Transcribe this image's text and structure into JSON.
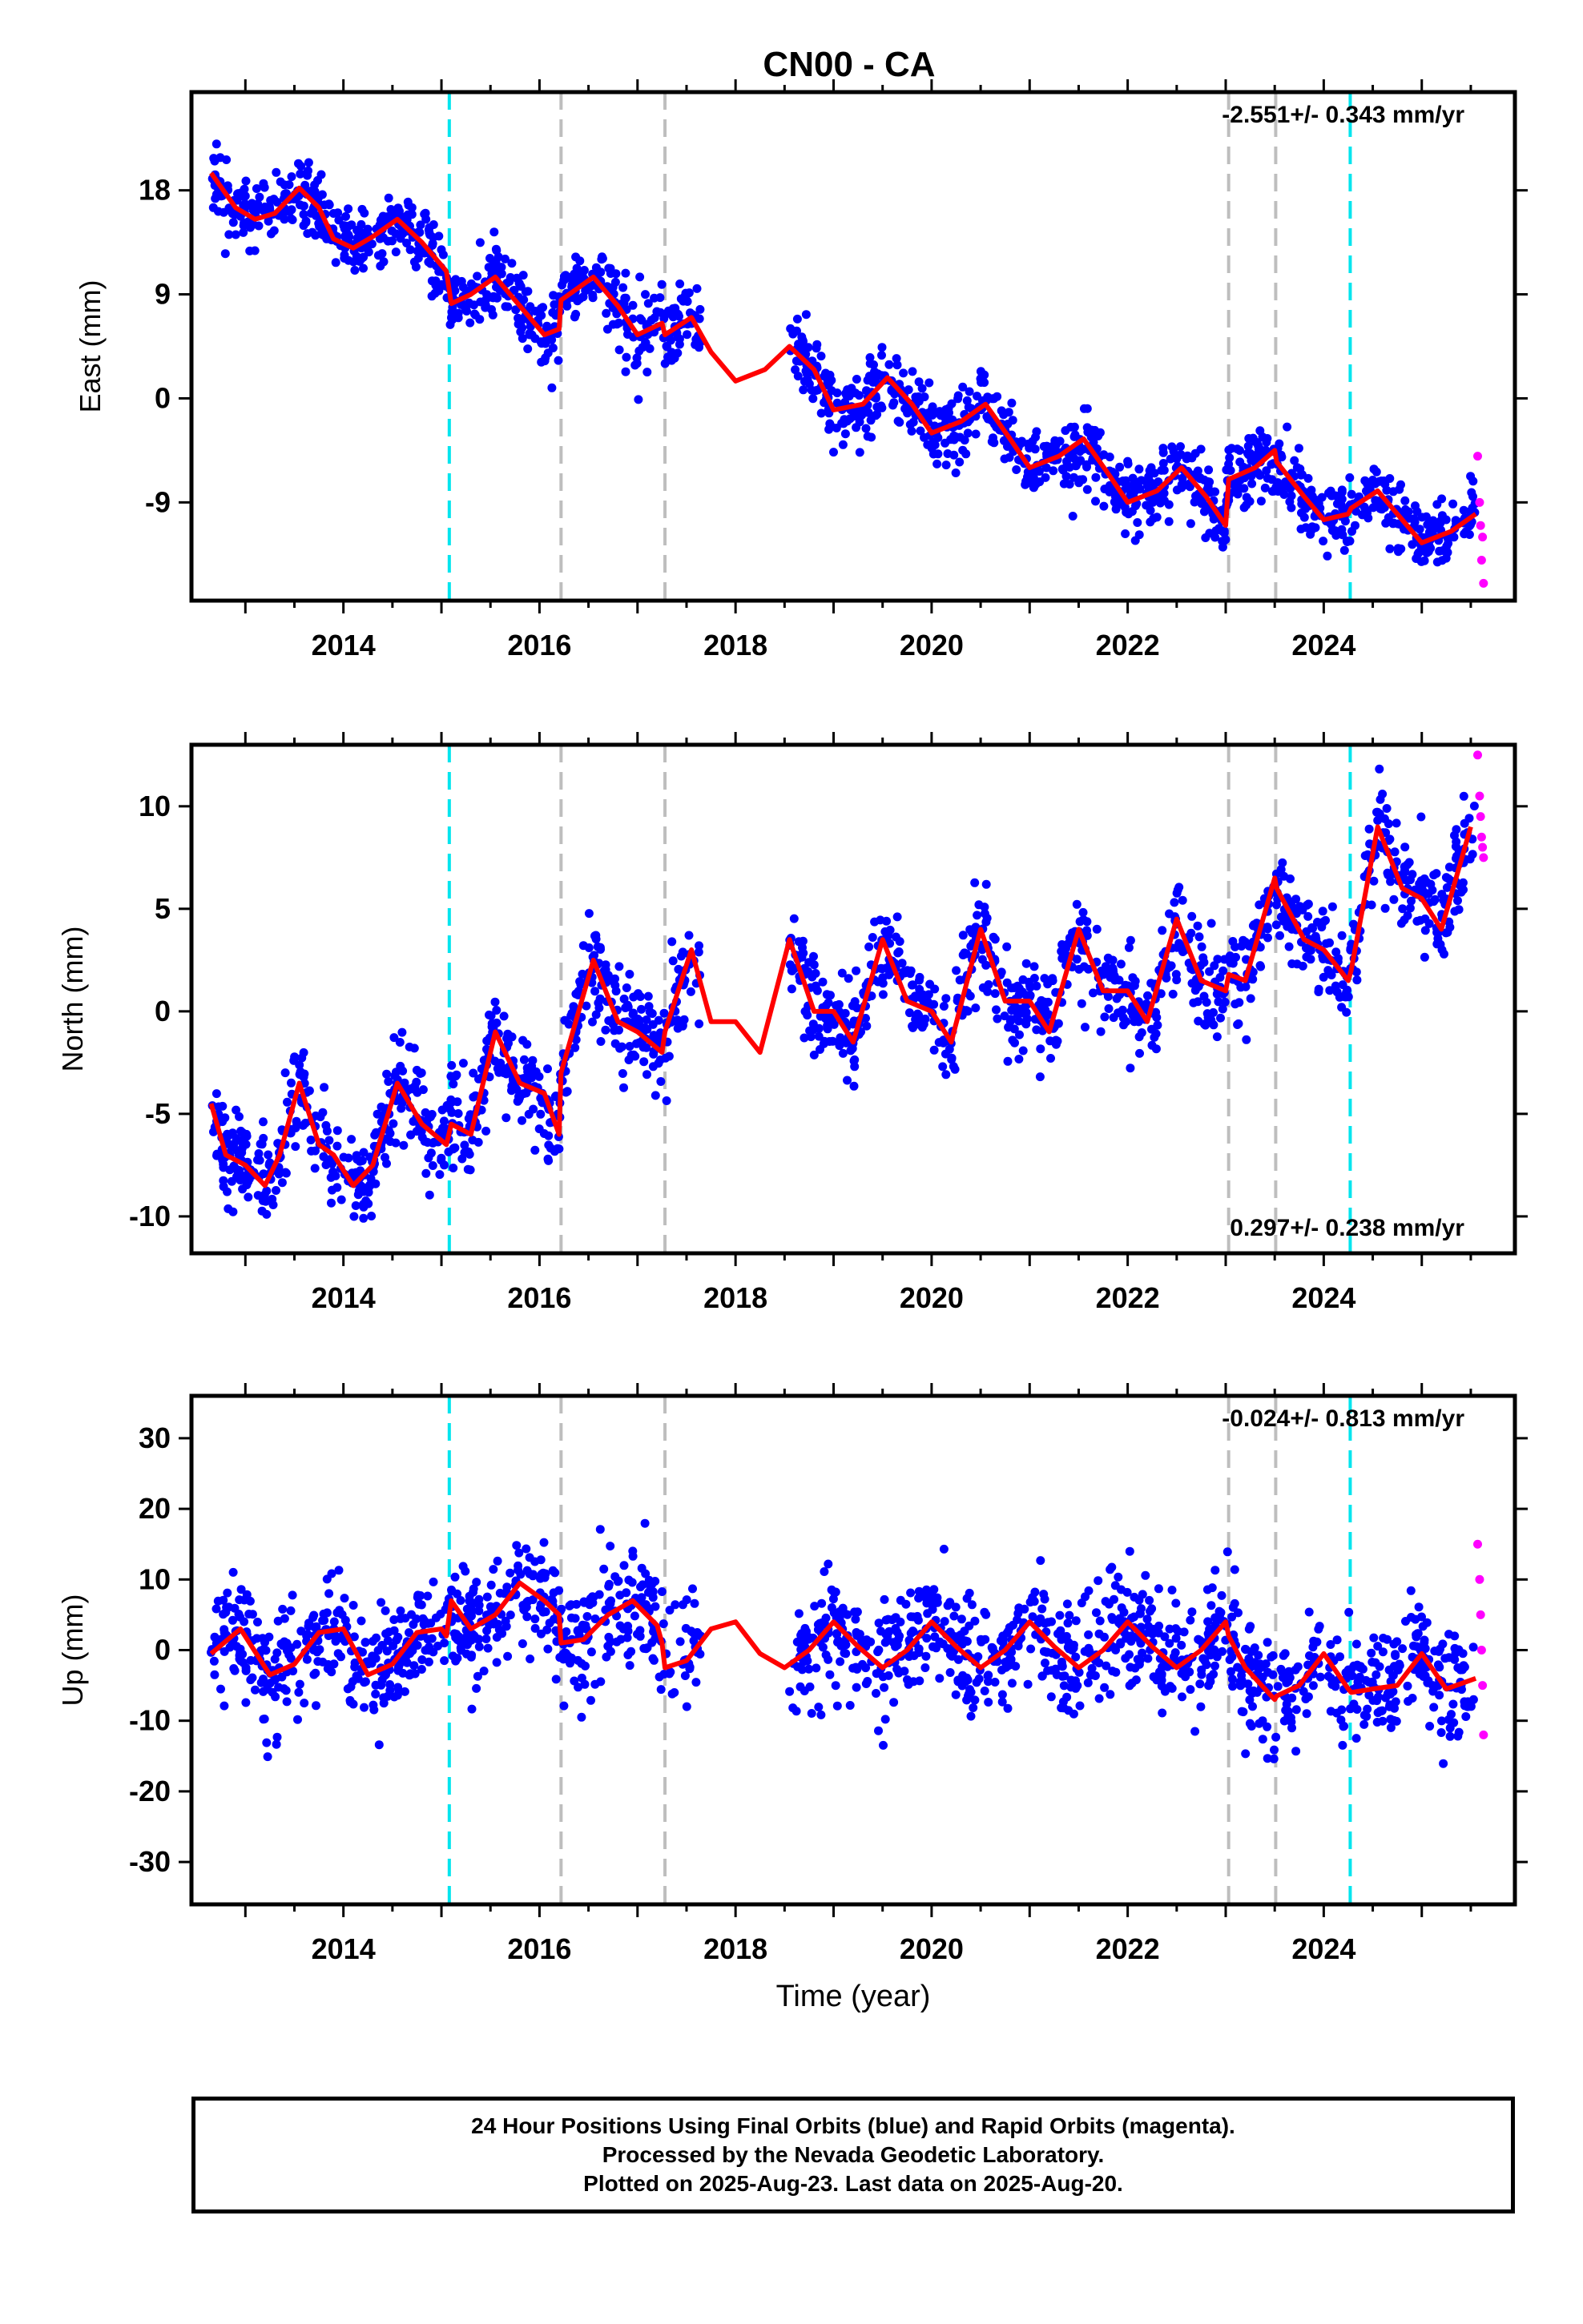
{
  "title": "CN00 - CA",
  "colors": {
    "final_orbits": "#0000ff",
    "rapid_orbits": "#ff00ff",
    "model_fit": "#ff0000",
    "antenna_change_line": "#00e5ee",
    "equipment_change_line": "#bebebe",
    "frame": "#000000"
  },
  "chart_data": [
    {
      "type": "scatter",
      "panel": "East",
      "ylabel": "East (mm)",
      "xlim": [
        2012.45,
        2025.95
      ],
      "ylim": [
        -17.5,
        26.5
      ],
      "x_ticks": [
        "2014",
        "2016",
        "2018",
        "2020",
        "2022",
        "2024"
      ],
      "y_ticks": [
        "18",
        "9",
        "0",
        "-9"
      ],
      "rate_label": "-2.551+/- 0.343 mm/yr",
      "rate_position": "top-right",
      "series": [
        {
          "name": "Final Orbits (blue)",
          "color": "#0000ff",
          "x_range": [
            2012.65,
            2025.55
          ],
          "gaps": [
            [
              2017.65,
              2018.55
            ]
          ]
        },
        {
          "name": "Rapid Orbits (magenta)",
          "color": "#ff00ff",
          "x": [
            2025.57,
            2025.59,
            2025.6,
            2025.61,
            2025.62,
            2025.63
          ],
          "y": [
            -5,
            -9,
            -11,
            -14,
            -12,
            -16
          ]
        }
      ],
      "model_fit": {
        "x": [
          2012.65,
          2012.9,
          2013.1,
          2013.3,
          2013.55,
          2013.75,
          2013.9,
          2014.1,
          2014.3,
          2014.55,
          2014.8,
          2015.05,
          2015.1,
          2015.3,
          2015.55,
          2015.8,
          2016.05,
          2016.2,
          2016.22,
          2016.55,
          2016.8,
          2017.0,
          2017.25,
          2017.28,
          2017.55,
          2017.75,
          2018.0,
          2018.3,
          2018.55,
          2018.8,
          2019.0,
          2019.3,
          2019.55,
          2019.8,
          2020.0,
          2020.3,
          2020.55,
          2020.8,
          2021.0,
          2021.3,
          2021.55,
          2021.8,
          2022.0,
          2022.3,
          2022.55,
          2022.8,
          2023.0,
          2023.03,
          2023.3,
          2023.5,
          2023.52,
          2023.8,
          2024.0,
          2024.25,
          2024.28,
          2024.55,
          2024.8,
          2025.0,
          2025.3,
          2025.55
        ],
        "y": [
          19.5,
          16.5,
          15.5,
          16.0,
          18.2,
          16.5,
          13.8,
          13.0,
          14.0,
          15.5,
          13.5,
          11.0,
          8.2,
          9.0,
          10.5,
          8.0,
          5.5,
          6.0,
          8.5,
          10.5,
          8.0,
          5.5,
          6.5,
          5.5,
          7.0,
          4.0,
          1.5,
          2.5,
          4.5,
          2.5,
          -1.0,
          -0.5,
          1.8,
          -0.5,
          -3.0,
          -2.0,
          -0.5,
          -3.5,
          -6.0,
          -5.0,
          -3.5,
          -6.5,
          -9.0,
          -8.0,
          -6.0,
          -8.5,
          -11.0,
          -7.0,
          -6.0,
          -4.5,
          -5.5,
          -8.5,
          -10.5,
          -10.0,
          -9.5,
          -8.0,
          -10.5,
          -12.5,
          -11.5,
          -10.0
        ]
      }
    },
    {
      "type": "scatter",
      "panel": "North",
      "ylabel": "North (mm)",
      "xlim": [
        2012.45,
        2025.95
      ],
      "ylim": [
        -11.8,
        13.0
      ],
      "x_ticks": [
        "2014",
        "2016",
        "2018",
        "2020",
        "2022",
        "2024"
      ],
      "y_ticks": [
        "10",
        "5",
        "0",
        "-5",
        "-10"
      ],
      "rate_label": "0.297+/- 0.238 mm/yr",
      "rate_position": "bottom-right",
      "series": [
        {
          "name": "Final Orbits (blue)",
          "color": "#0000ff",
          "x_range": [
            2012.65,
            2025.55
          ],
          "gaps": [
            [
              2017.65,
              2018.55
            ]
          ]
        },
        {
          "name": "Rapid Orbits (magenta)",
          "color": "#ff00ff",
          "x": [
            2025.57,
            2025.59,
            2025.6,
            2025.61,
            2025.62,
            2025.63
          ],
          "y": [
            12.5,
            10.5,
            9.5,
            8.5,
            8.0,
            7.5
          ]
        }
      ],
      "model_fit": {
        "x": [
          2012.65,
          2012.8,
          2013.0,
          2013.2,
          2013.35,
          2013.55,
          2013.75,
          2013.9,
          2014.1,
          2014.3,
          2014.55,
          2014.8,
          2015.05,
          2015.1,
          2015.3,
          2015.55,
          2015.8,
          2016.05,
          2016.2,
          2016.22,
          2016.55,
          2016.8,
          2017.0,
          2017.25,
          2017.28,
          2017.55,
          2017.75,
          2018.0,
          2018.25,
          2018.55,
          2018.8,
          2019.0,
          2019.2,
          2019.5,
          2019.75,
          2020.0,
          2020.2,
          2020.5,
          2020.75,
          2021.0,
          2021.2,
          2021.5,
          2021.75,
          2022.0,
          2022.2,
          2022.5,
          2022.75,
          2023.0,
          2023.03,
          2023.2,
          2023.5,
          2023.52,
          2023.8,
          2024.0,
          2024.25,
          2024.28,
          2024.55,
          2024.8,
          2025.0,
          2025.2,
          2025.5
        ],
        "y": [
          -4.5,
          -7.0,
          -7.5,
          -8.5,
          -7.0,
          -3.5,
          -6.5,
          -7.0,
          -8.5,
          -7.5,
          -3.5,
          -5.5,
          -6.5,
          -5.5,
          -6.0,
          -1.0,
          -3.5,
          -4.0,
          -6.0,
          -3.0,
          2.5,
          -0.5,
          -1.0,
          -2.0,
          -1.0,
          3.0,
          -0.5,
          -0.5,
          -2.0,
          3.5,
          0.0,
          0.0,
          -1.5,
          3.5,
          0.5,
          0.0,
          -1.5,
          4.0,
          0.5,
          0.5,
          -1.0,
          4.0,
          1.0,
          1.0,
          -0.5,
          4.5,
          1.5,
          1.0,
          1.8,
          1.5,
          6.5,
          6.0,
          3.5,
          3.0,
          1.5,
          2.0,
          9.0,
          6.0,
          5.5,
          4.0,
          9.0
        ]
      }
    },
    {
      "type": "scatter",
      "panel": "Up",
      "ylabel": "Up (mm)",
      "xlabel": "Time (year)",
      "xlim": [
        2012.45,
        2025.95
      ],
      "ylim": [
        -36,
        36
      ],
      "x_ticks": [
        "2014",
        "2016",
        "2018",
        "2020",
        "2022",
        "2024"
      ],
      "y_ticks": [
        "30",
        "20",
        "10",
        "0",
        "-10",
        "-20",
        "-30"
      ],
      "rate_label": "-0.024+/- 0.813 mm/yr",
      "rate_position": "top-right",
      "series": [
        {
          "name": "Final Orbits (blue)",
          "color": "#0000ff",
          "x_range": [
            2012.65,
            2025.55
          ],
          "gaps": [
            [
              2017.65,
              2018.55
            ]
          ]
        },
        {
          "name": "Rapid Orbits (magenta)",
          "color": "#ff00ff",
          "x": [
            2025.57,
            2025.59,
            2025.6,
            2025.61,
            2025.62,
            2025.63
          ],
          "y": [
            15,
            10,
            5,
            0,
            -5,
            -12
          ]
        }
      ],
      "model_fit": {
        "x": [
          2012.65,
          2012.95,
          2013.25,
          2013.5,
          2013.75,
          2014.0,
          2014.25,
          2014.5,
          2014.75,
          2015.0,
          2015.05,
          2015.1,
          2015.3,
          2015.55,
          2015.8,
          2016.05,
          2016.2,
          2016.22,
          2016.45,
          2016.7,
          2016.95,
          2017.2,
          2017.25,
          2017.28,
          2017.5,
          2017.75,
          2018.0,
          2018.25,
          2018.5,
          2018.75,
          2019.0,
          2019.25,
          2019.5,
          2019.75,
          2020.0,
          2020.25,
          2020.5,
          2020.75,
          2021.0,
          2021.25,
          2021.5,
          2021.75,
          2022.0,
          2022.25,
          2022.5,
          2022.75,
          2023.0,
          2023.03,
          2023.2,
          2023.5,
          2023.52,
          2023.75,
          2024.0,
          2024.25,
          2024.28,
          2024.5,
          2024.75,
          2025.0,
          2025.25,
          2025.55
        ],
        "y": [
          -0.5,
          3.0,
          -3.5,
          -2.0,
          2.5,
          3.0,
          -3.5,
          -2.0,
          2.5,
          3.0,
          2.0,
          7.0,
          3.0,
          5.0,
          9.5,
          7.0,
          5.0,
          1.0,
          1.5,
          5.0,
          7.0,
          3.5,
          1.0,
          -2.5,
          -1.5,
          3.0,
          4.0,
          -0.5,
          -2.5,
          0.0,
          4.0,
          0.5,
          -2.5,
          0.0,
          4.0,
          0.5,
          -2.5,
          0.0,
          4.0,
          0.5,
          -2.5,
          0.0,
          4.0,
          0.5,
          -2.5,
          0.0,
          4.0,
          2.0,
          -2.5,
          -7.0,
          -6.5,
          -5.0,
          -0.5,
          -5.5,
          -6.0,
          -5.5,
          -5.0,
          -0.5,
          -5.5,
          -4.0
        ]
      }
    }
  ],
  "event_lines": [
    {
      "x": 2015.08,
      "kind": "antenna",
      "color": "#00e5ee"
    },
    {
      "x": 2016.22,
      "kind": "equipment",
      "color": "#bebebe"
    },
    {
      "x": 2017.28,
      "kind": "equipment",
      "color": "#bebebe"
    },
    {
      "x": 2023.03,
      "kind": "equipment",
      "color": "#bebebe"
    },
    {
      "x": 2023.51,
      "kind": "equipment",
      "color": "#bebebe"
    },
    {
      "x": 2024.27,
      "kind": "antenna",
      "color": "#00e5ee"
    }
  ],
  "footer": {
    "line1": "24 Hour Positions Using Final Orbits (blue) and Rapid Orbits (magenta).",
    "line2": "Processed by the Nevada Geodetic Laboratory.",
    "line3": "Plotted on 2025-Aug-23. Last data on 2025-Aug-20."
  }
}
